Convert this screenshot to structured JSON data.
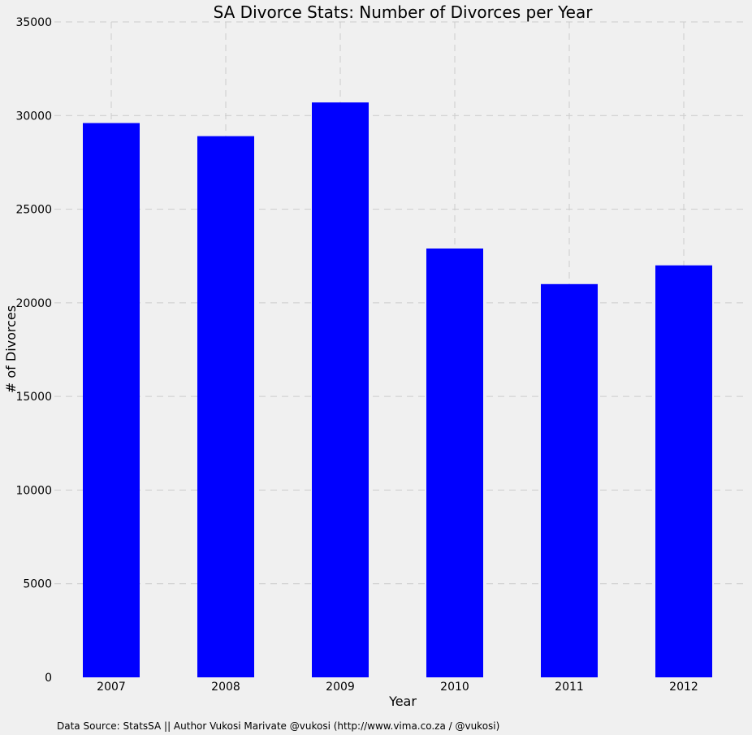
{
  "chart_data": {
    "type": "bar",
    "title": "SA Divorce Stats: Number of Divorces per Year",
    "xlabel": "Year",
    "ylabel": "# of Divorces",
    "categories": [
      "2007",
      "2008",
      "2009",
      "2010",
      "2011",
      "2012"
    ],
    "values": [
      29600,
      28900,
      30700,
      22900,
      21000,
      22000
    ],
    "ylim": [
      0,
      35000
    ],
    "yticks": [
      0,
      5000,
      10000,
      15000,
      20000,
      25000,
      30000,
      35000
    ],
    "grid": true,
    "bar_color": "#0000ff",
    "background_color": "#f0f0f0",
    "grid_color": "#cbcbcb"
  },
  "footnote": "Data Source: StatsSA || Author Vukosi Marivate @vukosi (http://www.vima.co.za / @vukosi)"
}
